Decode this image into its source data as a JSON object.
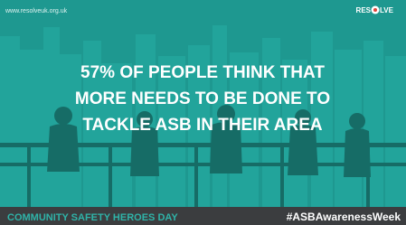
{
  "header": {
    "url": "www.resolveuk.org.uk",
    "logo_left": "RES",
    "logo_right": "LVE"
  },
  "headline": {
    "lines": [
      "57% OF PEOPLE THINK THAT",
      "MORE NEEDS TO BE DONE TO",
      "TACKLE ASB IN THEIR AREA"
    ]
  },
  "footer": {
    "left": "COMMUNITY SAFETY HEROES DAY",
    "right": "#ASBAwarenessWeek"
  }
}
